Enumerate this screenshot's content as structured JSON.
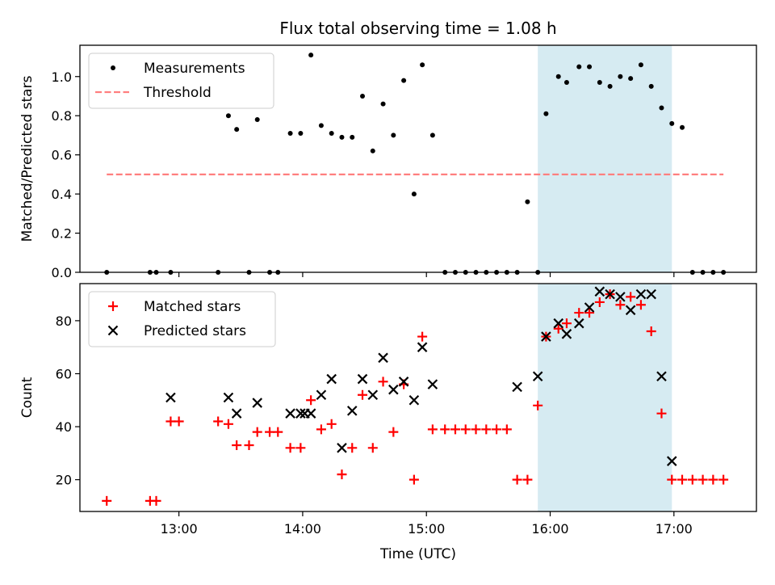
{
  "title": "Flux total observing time = 1.08 h",
  "xlabel": "Time (UTC)",
  "x_ticks": [
    "13:00",
    "14:00",
    "15:00",
    "16:00",
    "17:00"
  ],
  "chart_data": [
    {
      "type": "scatter",
      "title": "Flux total observing time = 1.08 h",
      "ylabel": "Matched/Predicted stars",
      "xlim": [
        "12:12",
        "17:40"
      ],
      "ylim": [
        0,
        1.16
      ],
      "y_ticks": [
        0.0,
        0.2,
        0.4,
        0.6,
        0.8,
        1.0
      ],
      "y_tick_labels": [
        "0.0",
        "0.2",
        "0.4",
        "0.6",
        "0.8",
        "1.0"
      ],
      "legend": "upper-left",
      "highlight_span": {
        "start": "15:54",
        "end": "16:59",
        "color": "#add8e6"
      },
      "threshold": {
        "name": "Threshold",
        "value": 0.5,
        "x_start": "12:25",
        "x_end": "17:24",
        "color": "#ff7f7f",
        "style": "dashed"
      },
      "series": [
        {
          "name": "Measurements",
          "color": "#000000",
          "marker": "dot",
          "x": [
            "12:25",
            "12:46",
            "12:49",
            "12:56",
            "13:19",
            "13:24",
            "13:28",
            "13:34",
            "13:38",
            "13:44",
            "13:48",
            "13:54",
            "13:59",
            "14:04",
            "14:09",
            "14:14",
            "14:19",
            "14:24",
            "14:29",
            "14:34",
            "14:39",
            "14:44",
            "14:49",
            "14:54",
            "14:58",
            "15:03",
            "15:09",
            "15:14",
            "15:19",
            "15:24",
            "15:29",
            "15:34",
            "15:39",
            "15:44",
            "15:49",
            "15:54",
            "15:58",
            "16:04",
            "16:08",
            "16:14",
            "16:19",
            "16:24",
            "16:29",
            "16:34",
            "16:39",
            "16:44",
            "16:49",
            "16:54",
            "16:59",
            "17:04",
            "17:09",
            "17:14",
            "17:19",
            "17:24"
          ],
          "y": [
            0.0,
            0.0,
            0.0,
            0.0,
            0.0,
            0.8,
            0.73,
            0.0,
            0.78,
            0.0,
            0.0,
            0.71,
            0.71,
            1.11,
            0.75,
            0.71,
            0.69,
            0.69,
            0.9,
            0.62,
            0.86,
            0.7,
            0.98,
            0.4,
            1.06,
            0.7,
            0.0,
            0.0,
            0.0,
            0.0,
            0.0,
            0.0,
            0.0,
            0.0,
            0.36,
            0.0,
            0.81,
            1.0,
            0.97,
            1.05,
            1.05,
            0.97,
            0.95,
            1.0,
            0.99,
            1.06,
            0.95,
            0.84,
            0.76,
            0.74,
            0.0,
            0.0,
            0.0,
            0.0
          ]
        }
      ]
    },
    {
      "type": "scatter",
      "ylabel": "Count",
      "xlabel": "Time (UTC)",
      "xlim": [
        "12:12",
        "17:40"
      ],
      "ylim": [
        8,
        94
      ],
      "y_ticks": [
        20,
        40,
        60,
        80
      ],
      "y_tick_labels": [
        "20",
        "40",
        "60",
        "80"
      ],
      "legend": "upper-left",
      "highlight_span": {
        "start": "15:54",
        "end": "16:59",
        "color": "#add8e6"
      },
      "series": [
        {
          "name": "Matched stars",
          "color": "#ff0000",
          "marker": "plus",
          "x": [
            "12:25",
            "12:46",
            "12:49",
            "12:56",
            "13:00",
            "13:19",
            "13:24",
            "13:28",
            "13:34",
            "13:38",
            "13:44",
            "13:48",
            "13:54",
            "13:59",
            "14:04",
            "14:09",
            "14:14",
            "14:19",
            "14:24",
            "14:29",
            "14:34",
            "14:39",
            "14:44",
            "14:49",
            "14:54",
            "14:58",
            "15:03",
            "15:09",
            "15:14",
            "15:19",
            "15:24",
            "15:29",
            "15:34",
            "15:39",
            "15:44",
            "15:49",
            "15:54",
            "15:58",
            "16:04",
            "16:08",
            "16:14",
            "16:19",
            "16:24",
            "16:29",
            "16:34",
            "16:39",
            "16:44",
            "16:49",
            "16:54",
            "16:59",
            "17:04",
            "17:09",
            "17:14",
            "17:19",
            "17:24"
          ],
          "y": [
            12,
            12,
            12,
            42,
            42,
            42,
            41,
            33,
            33,
            38,
            38,
            38,
            32,
            32,
            50,
            39,
            41,
            22,
            32,
            52,
            32,
            57,
            38,
            56,
            20,
            74,
            39,
            39,
            39,
            39,
            39,
            39,
            39,
            39,
            20,
            20,
            48,
            74,
            77,
            79,
            83,
            83,
            87,
            90,
            86,
            89,
            86,
            76,
            45,
            20,
            20,
            20,
            20,
            20,
            20
          ]
        },
        {
          "name": "Predicted stars",
          "color": "#000000",
          "marker": "x",
          "x": [
            "12:56",
            "13:24",
            "13:28",
            "13:38",
            "13:54",
            "13:59",
            "14:01",
            "14:04",
            "14:09",
            "14:14",
            "14:19",
            "14:24",
            "14:29",
            "14:34",
            "14:39",
            "14:44",
            "14:49",
            "14:54",
            "14:58",
            "15:03",
            "15:44",
            "15:54",
            "15:58",
            "16:04",
            "16:08",
            "16:14",
            "16:19",
            "16:24",
            "16:29",
            "16:34",
            "16:39",
            "16:44",
            "16:49",
            "16:54",
            "16:59"
          ],
          "y": [
            51,
            51,
            45,
            49,
            45,
            45,
            45,
            45,
            52,
            58,
            32,
            46,
            58,
            52,
            66,
            54,
            57,
            50,
            70,
            56,
            55,
            59,
            74,
            79,
            75,
            79,
            85,
            91,
            90,
            89,
            84,
            90,
            90,
            59,
            27
          ]
        }
      ]
    }
  ]
}
